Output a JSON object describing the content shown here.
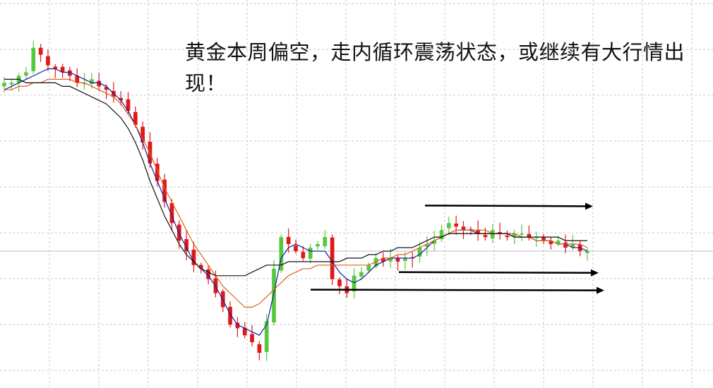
{
  "annotation": "黄金本周偏空，走内循环震荡状态，或继续有大行情出现！",
  "colors": {
    "bull": "#55c83c",
    "bear": "#e01818",
    "ma_fast": "#1a1aa0",
    "ma_mid": "#e06020",
    "ma_slow": "#101010",
    "grid": "#c8c8c8",
    "arrow": "#000000",
    "price_line": "#bdbdbd"
  },
  "chart_data": {
    "type": "candlestick",
    "grid": true,
    "last_price_line": true,
    "ylim": [
      0,
      100
    ],
    "closes": [
      80,
      80,
      82,
      83,
      90,
      88,
      85,
      84,
      83,
      82,
      80,
      80,
      81,
      79,
      78,
      76,
      75,
      72,
      68,
      63,
      57,
      52,
      46,
      40,
      35,
      32,
      28,
      27,
      24,
      20,
      16,
      11,
      10,
      8,
      6,
      3,
      12,
      27,
      36,
      34,
      32,
      30,
      33,
      34,
      36,
      24,
      22,
      20,
      25,
      26,
      28,
      30,
      29,
      30,
      29,
      30,
      30,
      33,
      34,
      35,
      38,
      40,
      39,
      38,
      38,
      37,
      36,
      38,
      37,
      36,
      37,
      37,
      36,
      36,
      35,
      34,
      35,
      33,
      34,
      32,
      32
    ],
    "series": [
      {
        "name": "",
        "values": [
          78,
          79,
          80,
          81,
          82,
          83,
          84,
          84,
          83,
          83,
          82,
          81,
          80,
          80,
          79,
          77,
          75,
          72,
          68,
          63,
          57,
          52,
          47,
          42,
          37,
          33,
          29,
          27,
          25,
          22,
          18,
          14,
          11,
          10,
          9,
          8,
          11,
          20,
          30,
          33,
          34,
          33,
          32,
          32,
          32,
          29,
          26,
          24,
          23,
          24,
          26,
          28,
          29,
          30,
          30,
          30,
          30,
          31,
          33,
          35,
          36,
          37,
          38,
          38,
          38,
          37,
          37,
          37,
          37,
          37,
          36,
          36,
          36,
          35,
          35,
          35,
          34,
          34,
          33,
          33,
          32
        ]
      },
      {
        "name": "",
        "values": [
          78,
          78,
          79,
          79,
          80,
          80,
          81,
          81,
          81,
          81,
          80,
          80,
          79,
          78,
          77,
          76,
          74,
          71,
          68,
          64,
          60,
          55,
          50,
          46,
          42,
          38,
          34,
          31,
          28,
          25,
          22,
          20,
          18,
          16,
          16,
          17,
          19,
          21,
          23,
          25,
          26,
          27,
          27,
          28,
          28,
          28,
          28,
          28,
          28,
          28,
          28,
          29,
          30,
          30,
          31,
          31,
          32,
          33,
          34,
          35,
          36,
          37,
          38,
          38,
          38,
          38,
          38,
          37,
          37,
          37,
          37,
          36,
          36,
          35,
          35,
          35,
          34,
          34,
          34,
          34,
          33
        ]
      },
      {
        "name": "",
        "values": [
          81,
          81,
          81,
          80,
          80,
          80,
          80,
          80,
          79,
          79,
          78,
          77,
          76,
          75,
          74,
          72,
          70,
          67,
          63,
          58,
          52,
          47,
          42,
          38,
          34,
          31,
          29,
          27,
          26,
          25,
          25,
          25,
          25,
          25,
          26,
          27,
          28,
          28,
          28,
          29,
          29,
          29,
          29,
          29,
          29,
          29,
          29,
          30,
          30,
          30,
          31,
          31,
          32,
          32,
          33,
          33,
          33,
          34,
          35,
          36,
          36,
          37,
          37,
          37,
          37,
          37,
          37,
          37,
          37,
          37,
          36,
          36,
          36,
          36,
          36,
          36,
          36,
          35,
          35,
          35,
          35
        ]
      }
    ],
    "range_arrows": [
      {
        "level": 45,
        "label": ""
      },
      {
        "level": 26,
        "label": ""
      },
      {
        "level": 21,
        "label": ""
      }
    ]
  }
}
